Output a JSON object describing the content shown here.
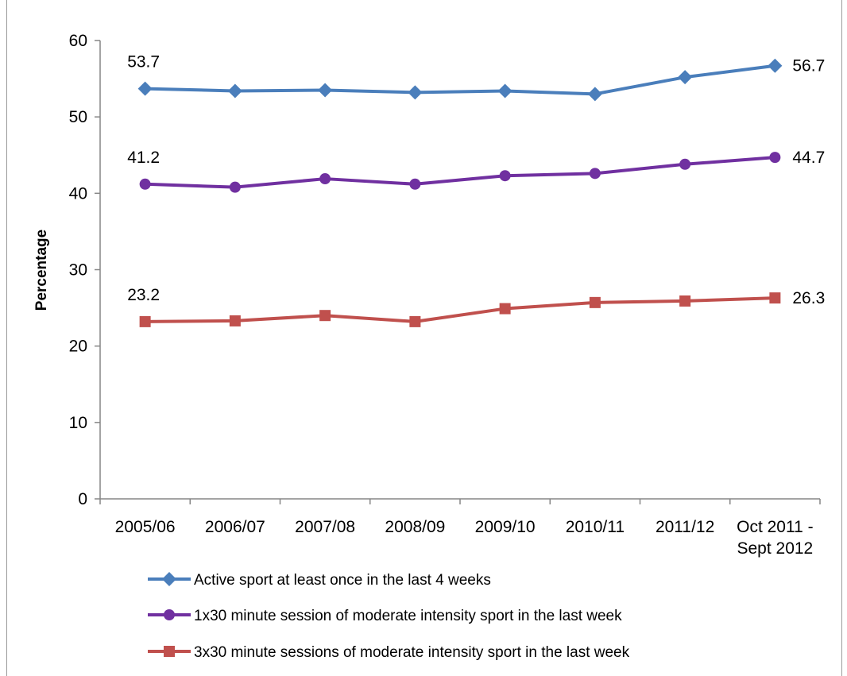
{
  "chart_data": {
    "type": "line",
    "title": "",
    "xlabel": "",
    "ylabel": "Percentage",
    "ylim": [
      0,
      60
    ],
    "yticks": [
      0,
      10,
      20,
      30,
      40,
      50,
      60
    ],
    "grid": false,
    "legend_position": "bottom",
    "categories": [
      "2005/06",
      "2006/07",
      "2007/08",
      "2008/09",
      "2009/10",
      "2010/11",
      "2011/12",
      "Oct 2011 - Sept 2012"
    ],
    "category_lines": [
      [
        "2005/06"
      ],
      [
        "2006/07"
      ],
      [
        "2007/08"
      ],
      [
        "2008/09"
      ],
      [
        "2009/10"
      ],
      [
        "2010/11"
      ],
      [
        "2011/12"
      ],
      [
        "Oct 2011 -",
        "Sept 2012"
      ]
    ],
    "series": [
      {
        "name": "Active sport at least once in the last 4 weeks",
        "color": "#4a7ebb",
        "marker": "diamond",
        "values": [
          53.7,
          53.4,
          53.5,
          53.2,
          53.4,
          53.0,
          55.2,
          56.7
        ],
        "first_label": "53.7",
        "last_label": "56.7"
      },
      {
        "name": "1x30 minute session of moderate intensity sport in the last week",
        "color": "#7030a0",
        "marker": "circle",
        "values": [
          41.2,
          40.8,
          41.9,
          41.2,
          42.3,
          42.6,
          43.8,
          44.7
        ],
        "first_label": "41.2",
        "last_label": "44.7"
      },
      {
        "name": "3x30 minute sessions of moderate intensity sport in the last week",
        "color": "#c0504d",
        "marker": "square",
        "values": [
          23.2,
          23.3,
          24.0,
          23.2,
          24.9,
          25.7,
          25.9,
          26.3
        ],
        "first_label": "23.2",
        "last_label": "26.3"
      }
    ]
  }
}
